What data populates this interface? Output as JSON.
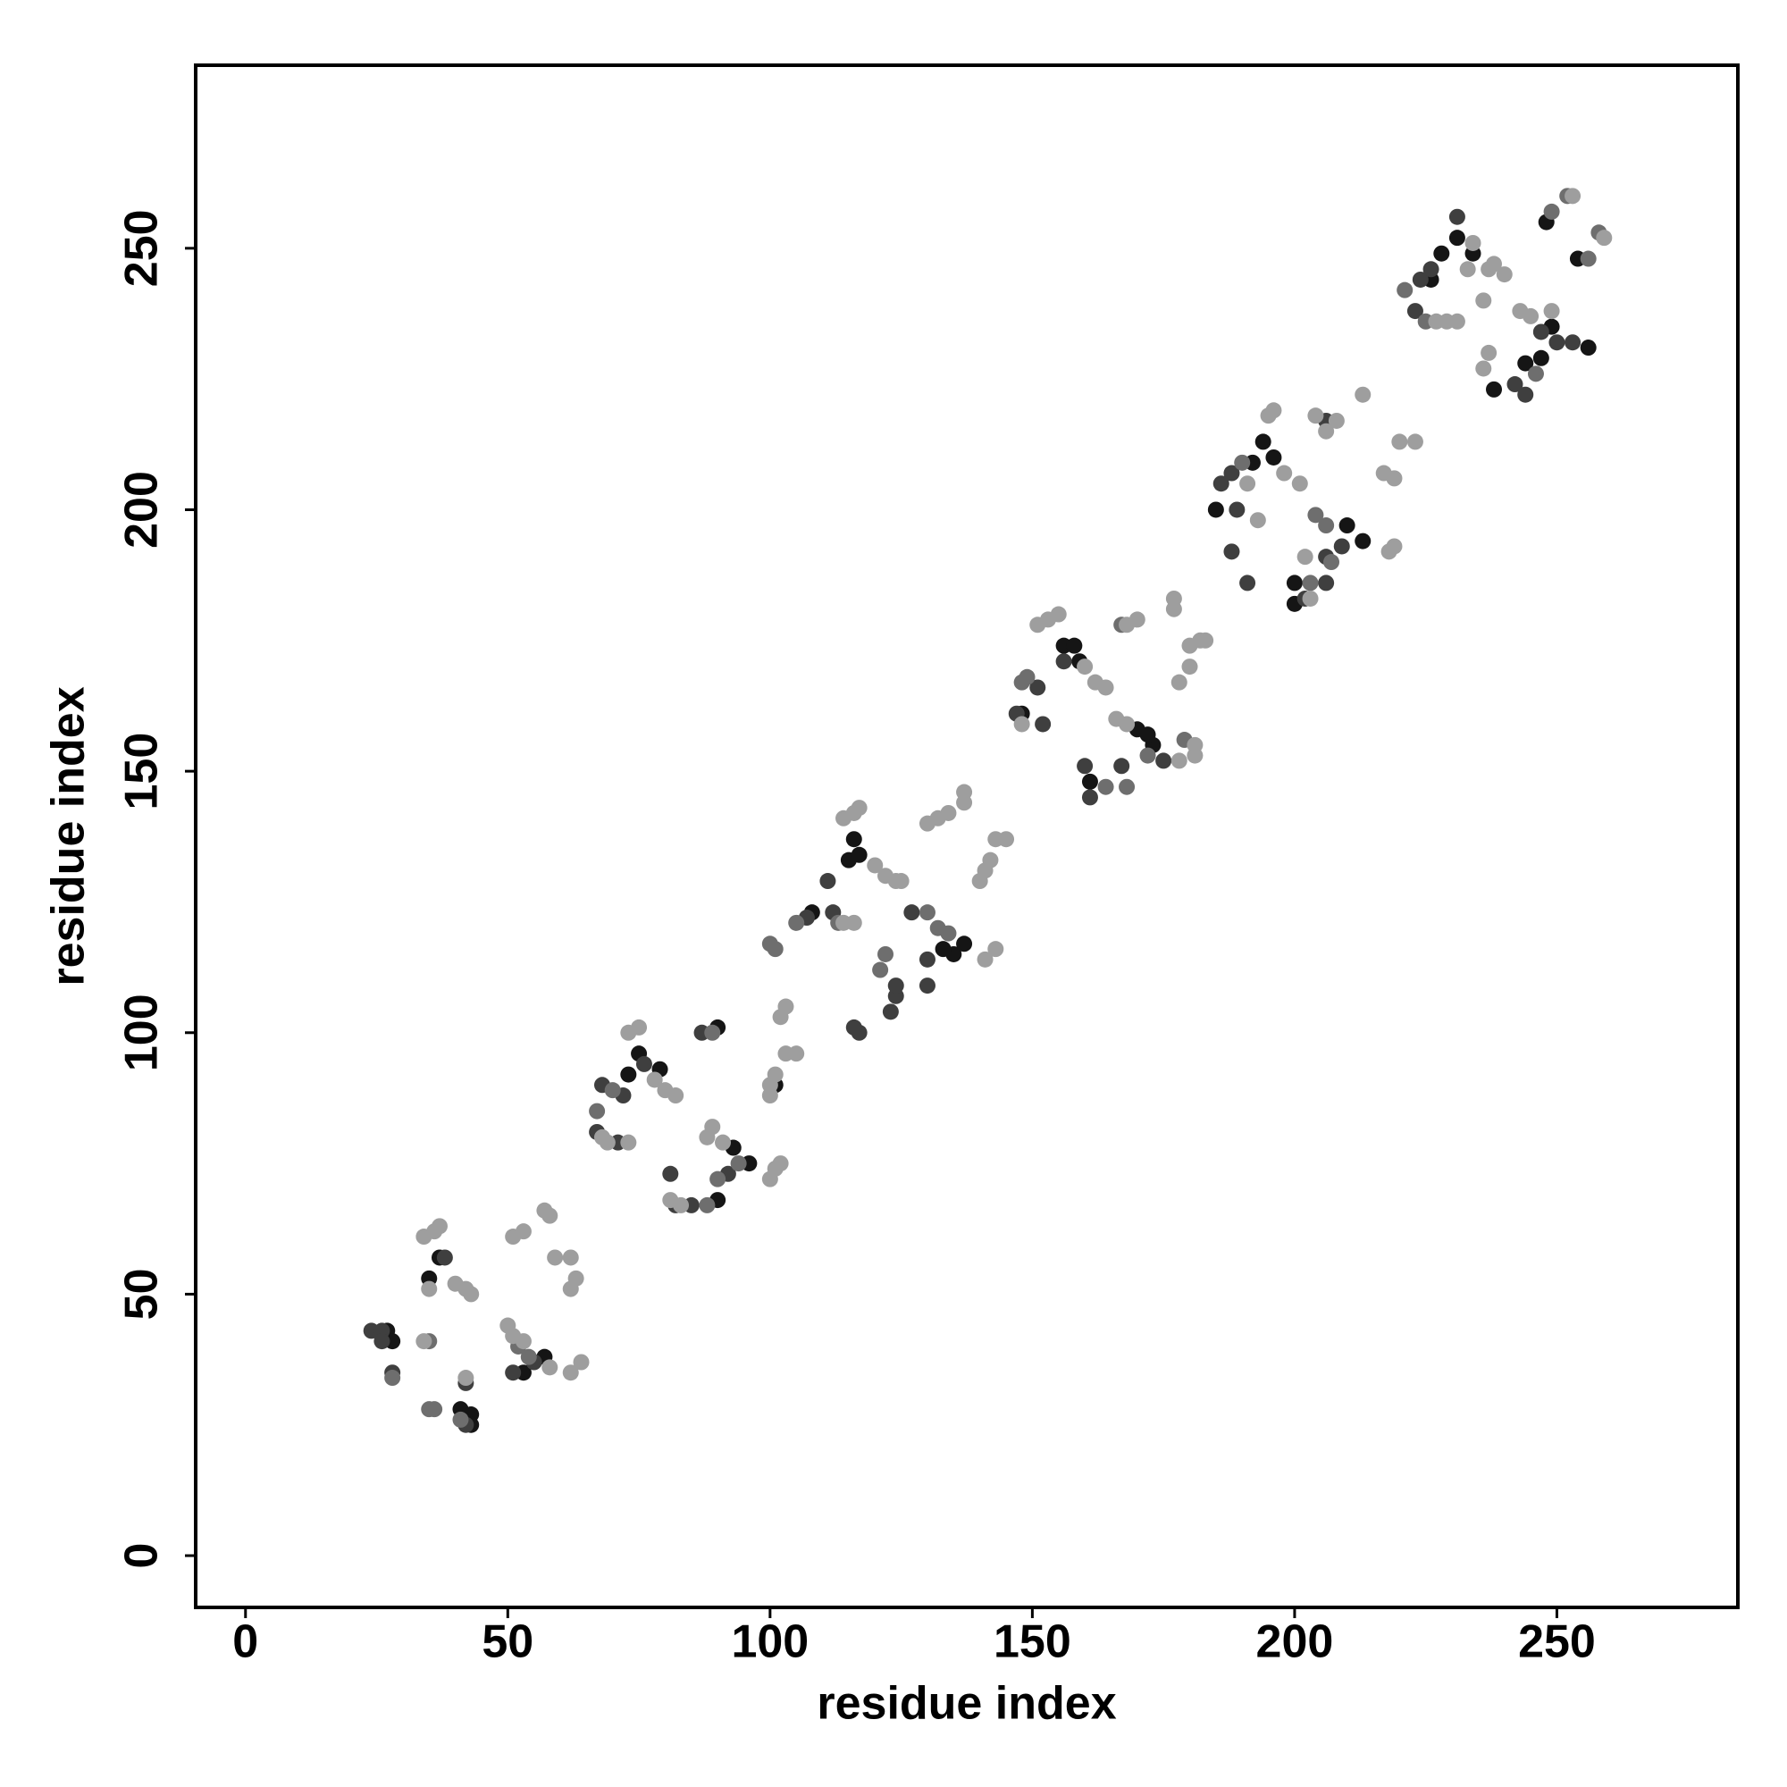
{
  "chart_data": {
    "type": "scatter",
    "xlabel": "residue index",
    "ylabel": "residue index",
    "xlim": [
      -9.5,
      284.5
    ],
    "ylim": [
      -9.9,
      285
    ],
    "xticks": [
      0,
      50,
      100,
      150,
      200,
      250
    ],
    "yticks": [
      0,
      50,
      100,
      150,
      200,
      250
    ],
    "series": [
      {
        "color": "#151515",
        "x": [
          27,
          28,
          37,
          35,
          41,
          43,
          43,
          57,
          53,
          75,
          73,
          79,
          93,
          96,
          90,
          90,
          101,
          116,
          115,
          117,
          135,
          137,
          133,
          108,
          156,
          158,
          159,
          161,
          173,
          170,
          172,
          148,
          194,
          192,
          196,
          213,
          210,
          200,
          200,
          185,
          231,
          228,
          234,
          226,
          248,
          254,
          249,
          247,
          244,
          238,
          256
        ],
        "values": [
          43,
          41,
          57,
          53,
          28,
          27,
          25,
          38,
          35,
          96,
          92,
          93,
          78,
          75,
          101,
          68,
          90,
          137,
          133,
          134,
          115,
          117,
          116,
          123,
          174,
          174,
          171,
          148,
          155,
          158,
          157,
          161,
          213,
          209,
          210,
          194,
          197,
          186,
          182,
          200,
          252,
          249,
          249,
          244,
          255,
          248,
          235,
          229,
          228,
          223,
          231
        ]
      },
      {
        "color": "#3f3f3f",
        "x": [
          24,
          26,
          26,
          38,
          28,
          42,
          42,
          51,
          55,
          67,
          68,
          71,
          72,
          76,
          81,
          82,
          85,
          92,
          87,
          111,
          112,
          107,
          123,
          124,
          124,
          117,
          116,
          130,
          130,
          127,
          147,
          151,
          156,
          160,
          161,
          167,
          175,
          152,
          188,
          189,
          188,
          186,
          206,
          209,
          206,
          202,
          206,
          191,
          223,
          224,
          226,
          231,
          242,
          244,
          250,
          253,
          247
        ],
        "values": [
          43,
          43,
          41,
          57,
          35,
          25,
          33,
          35,
          37,
          81,
          90,
          79,
          88,
          94,
          73,
          67,
          67,
          73,
          100,
          129,
          123,
          122,
          104,
          107,
          109,
          100,
          101,
          109,
          114,
          123,
          161,
          166,
          171,
          151,
          145,
          151,
          152,
          159,
          207,
          200,
          192,
          205,
          191,
          193,
          217,
          183,
          186,
          186,
          238,
          244,
          246,
          256,
          224,
          222,
          232,
          232,
          234
        ]
      },
      {
        "color": "#6e6e6e",
        "x": [
          35,
          35,
          36,
          41,
          52,
          54,
          28,
          67,
          70,
          88,
          90,
          94,
          89,
          100,
          101,
          121,
          122,
          130,
          132,
          134,
          113,
          105,
          148,
          149,
          168,
          172,
          167,
          164,
          179,
          190,
          204,
          206,
          207,
          203,
          221,
          225,
          246,
          249,
          252,
          258,
          256
        ],
        "values": [
          41,
          28,
          28,
          26,
          40,
          38,
          34,
          85,
          89,
          67,
          72,
          75,
          100,
          117,
          116,
          112,
          115,
          123,
          120,
          119,
          121,
          121,
          167,
          168,
          147,
          153,
          178,
          147,
          156,
          209,
          199,
          197,
          190,
          186,
          242,
          236,
          226,
          257,
          260,
          253,
          248
        ]
      },
      {
        "color": "#9e9e9e",
        "x": [
          34,
          36,
          37,
          40,
          42,
          43,
          51,
          53,
          57,
          58,
          59,
          62,
          62,
          63,
          58,
          62,
          64,
          50,
          51,
          53,
          34,
          35,
          42,
          73,
          75,
          78,
          80,
          82,
          88,
          89,
          91,
          100,
          101,
          102,
          100,
          101,
          103,
          105,
          102,
          103,
          68,
          69,
          73,
          81,
          83,
          114,
          116,
          117,
          120,
          122,
          124,
          125,
          130,
          132,
          134,
          137,
          137,
          140,
          141,
          142,
          143,
          145,
          143,
          141,
          114,
          116,
          100,
          151,
          153,
          155,
          160,
          162,
          164,
          166,
          168,
          168,
          170,
          177,
          177,
          180,
          182,
          183,
          178,
          180,
          181,
          181,
          178,
          148,
          195,
          196,
          198,
          201,
          204,
          206,
          208,
          213,
          217,
          219,
          220,
          223,
          218,
          219,
          191,
          193,
          202,
          203,
          229,
          236,
          237,
          238,
          240,
          236,
          237,
          243,
          245,
          249,
          253,
          259,
          227,
          231,
          234,
          233
        ],
        "values": [
          61,
          62,
          63,
          52,
          51,
          50,
          61,
          62,
          66,
          65,
          57,
          57,
          51,
          53,
          36,
          35,
          37,
          44,
          42,
          41,
          41,
          51,
          34,
          100,
          101,
          91,
          89,
          88,
          80,
          82,
          79,
          72,
          74,
          75,
          90,
          92,
          96,
          96,
          103,
          105,
          80,
          79,
          79,
          68,
          67,
          141,
          142,
          143,
          132,
          130,
          129,
          129,
          140,
          141,
          142,
          144,
          146,
          129,
          131,
          133,
          137,
          137,
          116,
          114,
          121,
          121,
          88,
          178,
          179,
          180,
          170,
          167,
          166,
          160,
          159,
          178,
          179,
          181,
          183,
          174,
          175,
          175,
          167,
          170,
          155,
          153,
          152,
          159,
          218,
          219,
          207,
          205,
          218,
          215,
          217,
          222,
          207,
          206,
          213,
          213,
          192,
          193,
          205,
          198,
          191,
          183,
          236,
          240,
          246,
          247,
          245,
          227,
          230,
          238,
          237,
          238,
          260,
          252,
          236,
          236,
          251,
          246
        ]
      }
    ]
  }
}
